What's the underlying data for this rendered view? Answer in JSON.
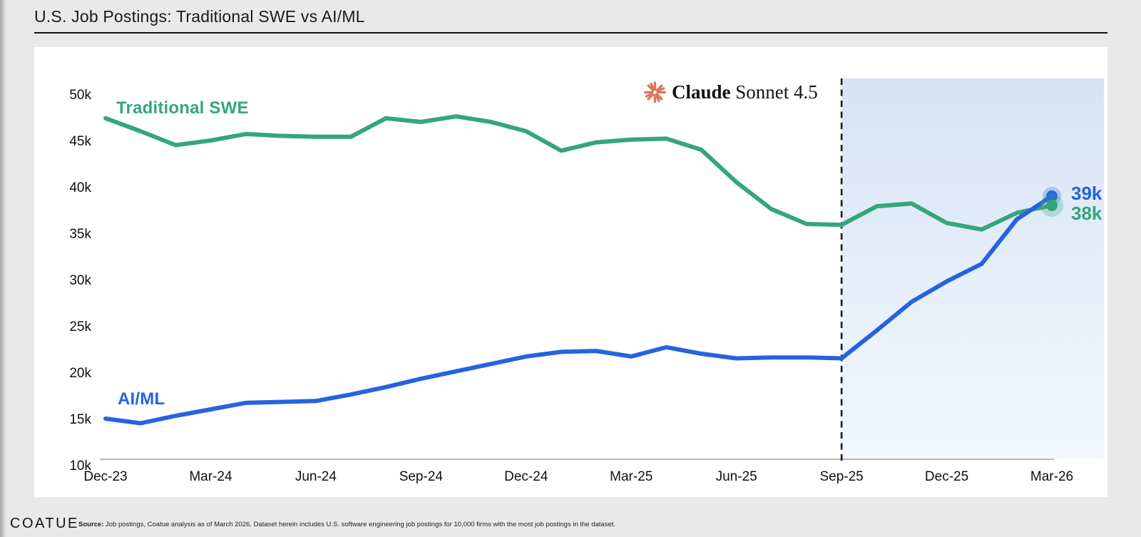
{
  "title": "U.S. Job Postings: Traditional SWE vs AI/ML",
  "annotation": {
    "icon": "anthropic-starburst",
    "icon_color": "#d97757",
    "brand": "Claude",
    "model": "Sonnet 4.5"
  },
  "chart_data": {
    "type": "line",
    "title": "U.S. Job Postings: Traditional SWE vs AI/ML",
    "x": [
      "Dec-23",
      "Jan-24",
      "Feb-24",
      "Mar-24",
      "Apr-24",
      "May-24",
      "Jun-24",
      "Jul-24",
      "Aug-24",
      "Sep-24",
      "Oct-24",
      "Nov-24",
      "Dec-24",
      "Jan-25",
      "Feb-25",
      "Mar-25",
      "Apr-25",
      "May-25",
      "Jun-25",
      "Jul-25",
      "Aug-25",
      "Sep-25",
      "Oct-25",
      "Nov-25",
      "Dec-25",
      "Jan-26",
      "Feb-26",
      "Mar-26"
    ],
    "x_tick_labels": [
      "Dec-23",
      "Mar-24",
      "Jun-24",
      "Sep-24",
      "Dec-24",
      "Mar-25",
      "Jun-25",
      "Sep-25",
      "Dec-25",
      "Mar-26"
    ],
    "y_tick_values": [
      10,
      15,
      20,
      25,
      30,
      35,
      40,
      45,
      50
    ],
    "y_tick_suffix": "k",
    "ylim": [
      10,
      51.5
    ],
    "grid": false,
    "unit": "job postings (thousands)",
    "series": [
      {
        "name": "Traditional SWE",
        "color": "#35a57d",
        "values": [
          47.4,
          46.0,
          44.5,
          45.0,
          45.7,
          45.5,
          45.4,
          45.4,
          47.4,
          47.0,
          47.6,
          47.0,
          46.0,
          43.9,
          44.8,
          45.1,
          45.2,
          44.0,
          40.5,
          37.6,
          36.0,
          35.9,
          37.9,
          38.2,
          36.1,
          35.4,
          37.2,
          38.0
        ]
      },
      {
        "name": "AI/ML",
        "color": "#2563df",
        "values": [
          15.0,
          14.5,
          15.3,
          16.0,
          16.7,
          16.8,
          16.9,
          17.6,
          18.4,
          19.3,
          20.1,
          20.9,
          21.7,
          22.2,
          22.3,
          21.7,
          22.7,
          22.0,
          21.5,
          21.6,
          21.6,
          21.5,
          24.5,
          27.6,
          29.8,
          31.7,
          36.5,
          39.0
        ]
      }
    ],
    "forecast": {
      "start_label": "Sep-25",
      "divider_style": "dashed",
      "divider_color": "#1a1a1a",
      "fill_top": "#d7e3f5",
      "fill_bottom": "#f3f8fd"
    },
    "end_labels": [
      {
        "text": "39k",
        "series": "AI/ML",
        "value": 39,
        "color": "#2563df"
      },
      {
        "text": "38k",
        "series": "Traditional SWE",
        "value": 38,
        "color": "#35a57d"
      }
    ],
    "legend_position": "inline-labels"
  },
  "footer": {
    "logo": "COATUE",
    "source_label": "Source:",
    "source_text": " Job postings, Coatue analysis as of March 2026. Dataset herein includes U.S. software engineering job postings for 10,000 firms with the most job postings in the dataset."
  }
}
